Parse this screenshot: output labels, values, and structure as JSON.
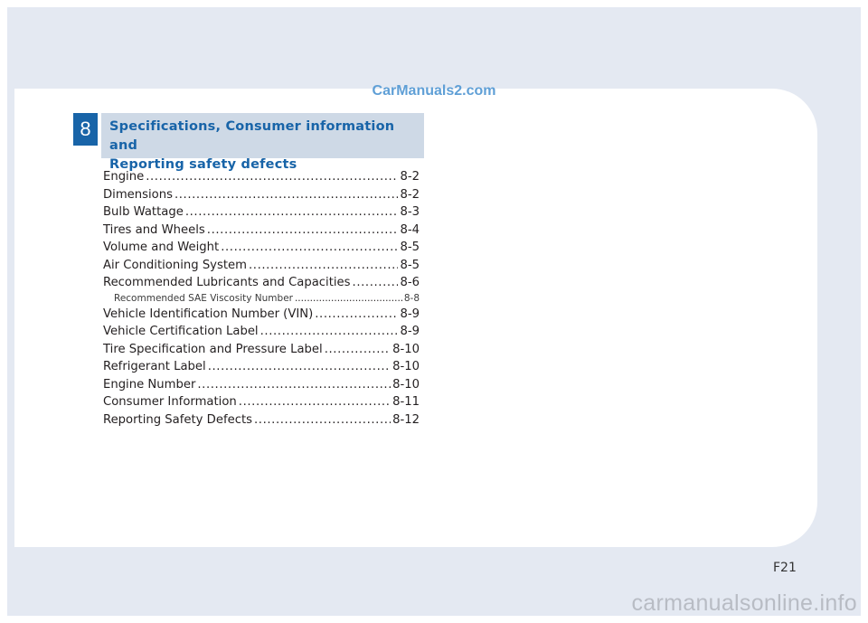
{
  "watermark_top": "CarManuals2.com",
  "chapter": {
    "number": "8",
    "title_line1": "Specifications, Consumer information and",
    "title_line2": "Reporting safety defects"
  },
  "toc": [
    {
      "label": "Engine",
      "page": "8-2"
    },
    {
      "label": "Dimensions",
      "page": "8-2"
    },
    {
      "label": "Bulb Wattage",
      "page": "8-3"
    },
    {
      "label": "Tires and Wheels",
      "page": "8-4"
    },
    {
      "label": "Volume and Weight",
      "page": "8-5"
    },
    {
      "label": "Air Conditioning System",
      "page": "8-5"
    },
    {
      "label": "Recommended Lubricants and Capacities",
      "page": "8-6"
    },
    {
      "label": "Recommended SAE Viscosity Number",
      "page": "8-8"
    },
    {
      "label": "Vehicle Identification Number (VIN)",
      "page": "8-9"
    },
    {
      "label": "Vehicle Certification Label",
      "page": "8-9"
    },
    {
      "label": "Tire Specification and Pressure Label",
      "page": "8-10"
    },
    {
      "label": "Refrigerant Label",
      "page": "8-10"
    },
    {
      "label": "Engine Number",
      "page": "8-10"
    },
    {
      "label": "Consumer Information",
      "page": "8-11"
    },
    {
      "label": "Reporting Safety Defects",
      "page": "8-12"
    }
  ],
  "page_number": "F21",
  "watermark_bottom": "carmanualsonline.info"
}
